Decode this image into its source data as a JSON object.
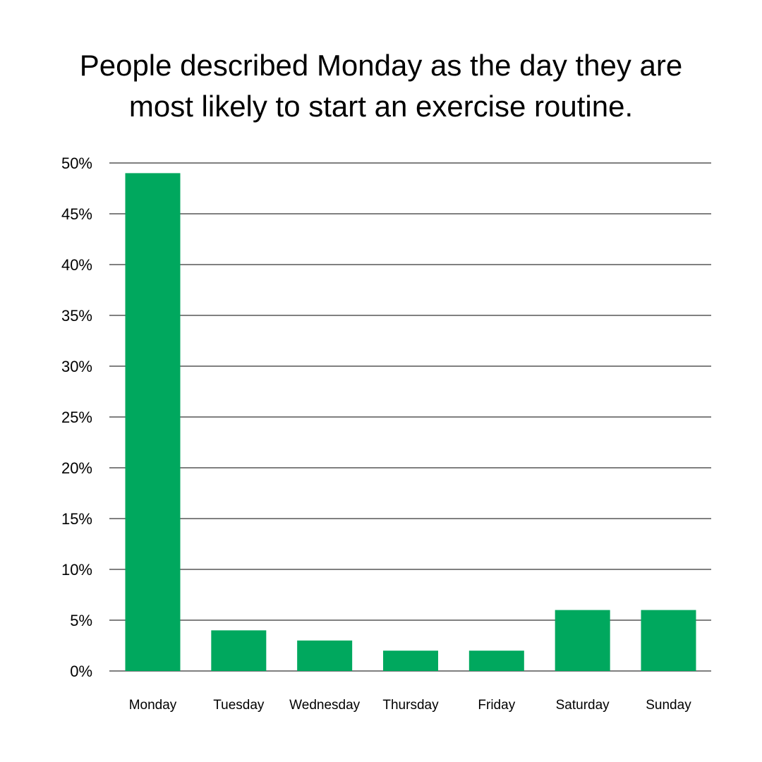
{
  "chart_data": {
    "type": "bar",
    "title_lines": [
      "People described Monday as the day they are",
      "most likely to start an exercise routine."
    ],
    "categories": [
      "Monday",
      "Tuesday",
      "Wednesday",
      "Thursday",
      "Friday",
      "Saturday",
      "Sunday"
    ],
    "values": [
      49,
      4,
      3,
      2,
      2,
      6,
      6
    ],
    "ylim": [
      0,
      50
    ],
    "yticks": [
      0,
      5,
      10,
      15,
      20,
      25,
      30,
      35,
      40,
      45,
      50
    ],
    "ytick_labels": [
      "0%",
      "5%",
      "10%",
      "15%",
      "20%",
      "25%",
      "30%",
      "35%",
      "40%",
      "45%",
      "50%"
    ],
    "grid": true,
    "bar_color": "#00a85e",
    "grid_color": "#000000"
  }
}
